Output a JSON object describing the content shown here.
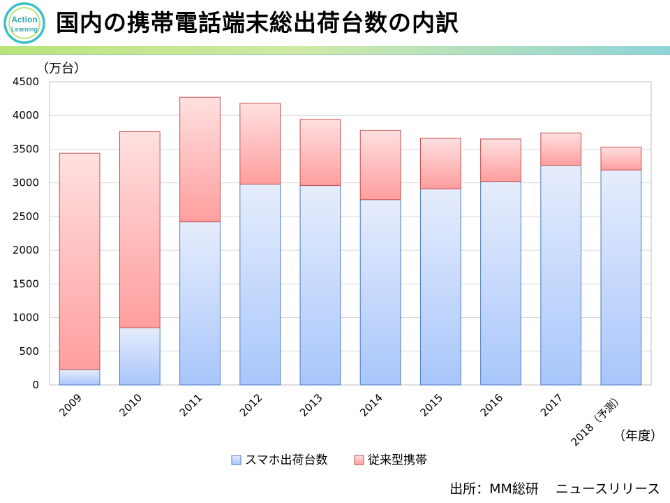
{
  "header": {
    "title": "国内の携帯電話端末総出荷台数の内訳",
    "logo_line1": "Action",
    "logo_line2": "Learning"
  },
  "source": {
    "prefix": "出所：MM総研",
    "suffix": "ニュースリリース"
  },
  "colors": {
    "smartphone_top": "#e6edfc",
    "smartphone_bottom": "#a8c6fb",
    "smartphone_stroke": "#4f7bc0",
    "feature_top": "#ffe0e0",
    "feature_bottom": "#ff9e9e",
    "feature_stroke": "#c05050"
  },
  "chart_data": {
    "type": "bar",
    "stacked": true,
    "categories": [
      "2009",
      "2010",
      "2011",
      "2012",
      "2013",
      "2014",
      "2015",
      "2016",
      "2017",
      "2018（予測）"
    ],
    "series": [
      {
        "name": "スマホ出荷台数",
        "values": [
          230,
          850,
          2420,
          2980,
          2960,
          2750,
          2910,
          3020,
          3260,
          3190
        ]
      },
      {
        "name": "従来型携帯",
        "values": [
          3210,
          2910,
          1850,
          1200,
          980,
          1030,
          750,
          630,
          480,
          340
        ]
      }
    ],
    "yticks": [
      0,
      500,
      1000,
      1500,
      2000,
      2500,
      3000,
      3500,
      4000,
      4500
    ],
    "ylim": [
      0,
      4500
    ],
    "ylabel": "（万台）",
    "xlabel": "（年度）",
    "grid": true,
    "legend_position": "bottom"
  }
}
